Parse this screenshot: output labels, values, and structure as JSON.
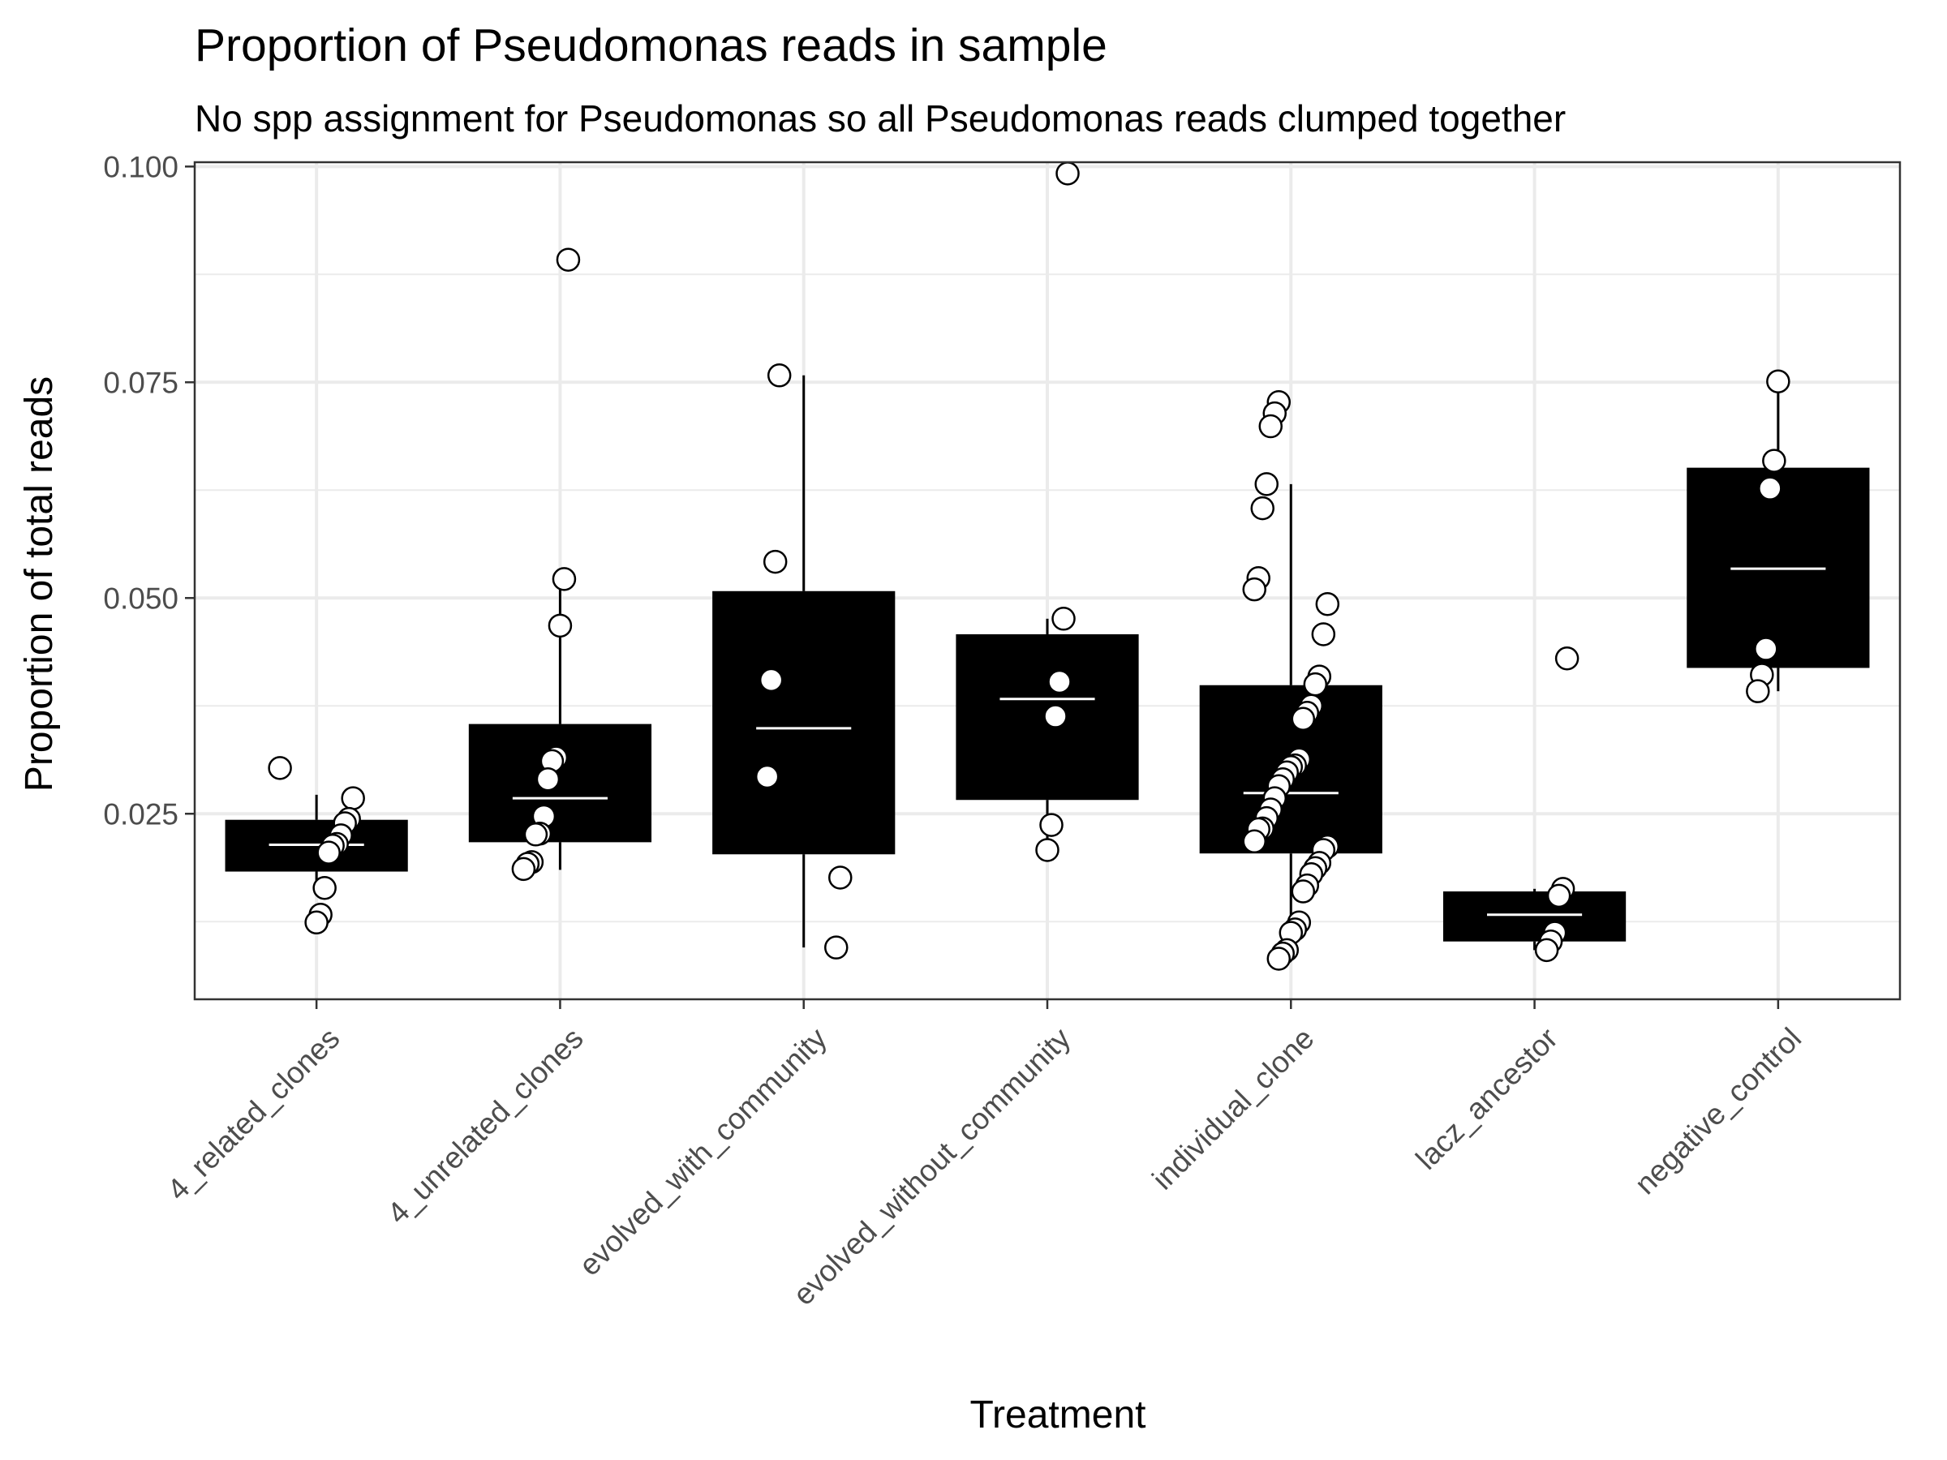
{
  "chart_data": {
    "type": "box",
    "title": "Proportion of Pseudomonas reads in sample",
    "subtitle": "No spp assignment for Pseudomonas so all Pseudomonas reads clumped together",
    "xlabel": "Treatment",
    "ylabel": "Proportion of total reads",
    "ylim": [
      0.0035,
      0.1005
    ],
    "yticks": [
      0.025,
      0.05,
      0.075,
      0.1
    ],
    "ytick_labels": [
      "0.025",
      "0.050",
      "0.075",
      "0.100"
    ],
    "grid": true,
    "colors": {
      "box": "#000000",
      "median": "#ffffff",
      "point_fill": "#ffffff",
      "point_stroke": "#000000",
      "grid": "#ebebeb",
      "panel_border": "#333333"
    },
    "categories": [
      "4_related_clones",
      "4_unrelated_clones",
      "evolved_with_community",
      "evolved_without_community",
      "individual_clone",
      "lacz_ancestor",
      "negative_control"
    ],
    "boxes": [
      {
        "category": "4_related_clones",
        "q1": 0.0183,
        "median": 0.0214,
        "q3": 0.0243,
        "whisker_low": 0.0163,
        "whisker_high": 0.0272
      },
      {
        "category": "4_unrelated_clones",
        "q1": 0.0217,
        "median": 0.0268,
        "q3": 0.0354,
        "whisker_low": 0.0185,
        "whisker_high": 0.0522
      },
      {
        "category": "evolved_with_community",
        "q1": 0.0203,
        "median": 0.0349,
        "q3": 0.0508,
        "whisker_low": 0.0095,
        "whisker_high": 0.0758
      },
      {
        "category": "evolved_without_community",
        "q1": 0.0266,
        "median": 0.0383,
        "q3": 0.0458,
        "whisker_low": 0.0208,
        "whisker_high": 0.0476
      },
      {
        "category": "individual_clone",
        "q1": 0.0204,
        "median": 0.0274,
        "q3": 0.0399,
        "whisker_low": 0.0082,
        "whisker_high": 0.0632
      },
      {
        "category": "lacz_ancestor",
        "q1": 0.0102,
        "median": 0.0133,
        "q3": 0.016,
        "whisker_low": 0.0092,
        "whisker_high": 0.0163
      },
      {
        "category": "negative_control",
        "q1": 0.0419,
        "median": 0.0534,
        "q3": 0.0651,
        "whisker_low": 0.0392,
        "whisker_high": 0.075
      }
    ],
    "points": [
      {
        "category": "4_related_clones",
        "values": [
          0.0303,
          0.0268,
          0.0244,
          0.0239,
          0.0225,
          0.0215,
          0.0213,
          0.0205,
          0.0164,
          0.0133,
          0.0124
        ]
      },
      {
        "category": "4_unrelated_clones",
        "values": [
          0.0892,
          0.0522,
          0.0468,
          0.0315,
          0.0311,
          0.029,
          0.0247,
          0.0227,
          0.0226,
          0.0194,
          0.0192,
          0.0186
        ]
      },
      {
        "category": "evolved_with_community",
        "values": [
          0.0758,
          0.0542,
          0.0405,
          0.0293,
          0.0176,
          0.0095
        ]
      },
      {
        "category": "evolved_without_community",
        "values": [
          0.0992,
          0.0476,
          0.0403,
          0.0363,
          0.0237,
          0.0208
        ]
      },
      {
        "category": "individual_clone",
        "values": [
          0.0727,
          0.0714,
          0.0699,
          0.0632,
          0.0604,
          0.0523,
          0.051,
          0.0493,
          0.0458,
          0.0409,
          0.04,
          0.0375,
          0.0367,
          0.036,
          0.0313,
          0.0306,
          0.0304,
          0.0298,
          0.029,
          0.0282,
          0.0268,
          0.0255,
          0.0245,
          0.0233,
          0.0232,
          0.0218,
          0.0212,
          0.0208,
          0.0193,
          0.0187,
          0.018,
          0.0167,
          0.016,
          0.0124,
          0.0116,
          0.0112,
          0.0092,
          0.0088,
          0.0082
        ]
      },
      {
        "category": "lacz_ancestor",
        "values": [
          0.043,
          0.0163,
          0.0155,
          0.0112,
          0.0102,
          0.0092
        ]
      },
      {
        "category": "negative_control",
        "values": [
          0.0751,
          0.0659,
          0.0627,
          0.0441,
          0.0411,
          0.0392
        ]
      }
    ]
  }
}
